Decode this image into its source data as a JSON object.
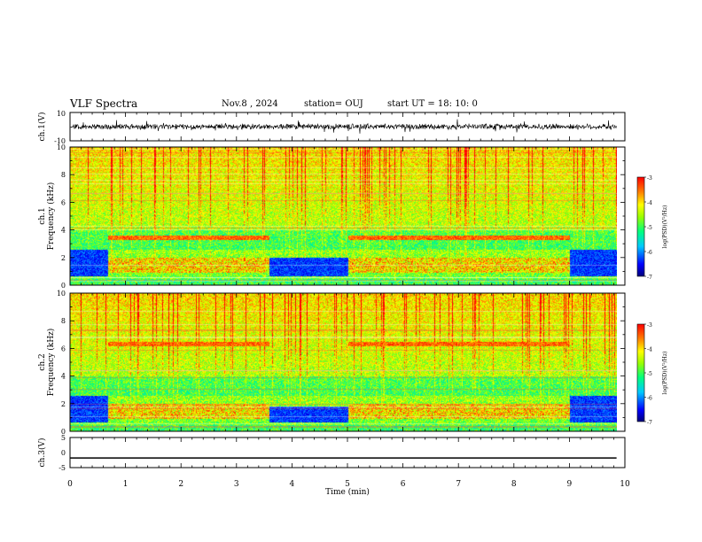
{
  "header": {
    "title": "VLF Spectra",
    "date": "Nov.8 , 2024",
    "station": "station= OUJ",
    "start": "start UT = 18: 10: 0"
  },
  "chart_data": [
    {
      "type": "line",
      "panel": "ch.1 waveform",
      "ylabel": "ch.1(V)",
      "ylim": [
        -10,
        10
      ],
      "yticks": [
        "10",
        "-10"
      ],
      "x_range_min": [
        0,
        9.85
      ],
      "baseline": 0,
      "description_values": "noisy trace around 0 V, amplitude roughly ±2 V"
    },
    {
      "type": "heatmap",
      "panel": "ch.1 spectrogram",
      "ylabel": "ch.1 Frequency (kHz)",
      "ylim": [
        0,
        10
      ],
      "yticks": [
        "0",
        "2",
        "4",
        "6",
        "8",
        "10"
      ],
      "colorbar": {
        "label": "log(PSD)(V²/Hz)",
        "range": [
          -7,
          -3
        ],
        "ticks": [
          "-3",
          "-4",
          "-5",
          "-6",
          "-7"
        ]
      },
      "segments": [
        {
          "x": [
            0,
            0.68
          ],
          "lowband_top": 2.6,
          "level": "low"
        },
        {
          "x": [
            0.68,
            3.58
          ],
          "band_khz": [
            3.3,
            3.6
          ],
          "level": "high"
        },
        {
          "x": [
            3.58,
            5.0
          ],
          "lowband_top": 2.0,
          "level": "low"
        },
        {
          "x": [
            5.0,
            9.0
          ],
          "band_khz": [
            3.3,
            3.6
          ],
          "level": "high"
        },
        {
          "x": [
            9.0,
            9.85
          ],
          "lowband_top": 2.6,
          "level": "low"
        }
      ]
    },
    {
      "type": "heatmap",
      "panel": "ch.2 spectrogram",
      "ylabel": "ch.2 Frequency (kHz)",
      "ylim": [
        0,
        10
      ],
      "yticks": [
        "0",
        "2",
        "4",
        "6",
        "8",
        "10"
      ],
      "colorbar": {
        "label": "log(PSD)(V²/Hz)",
        "range": [
          -7,
          -3
        ],
        "ticks": [
          "-3",
          "-4",
          "-5",
          "-6",
          "-7"
        ]
      },
      "segments": [
        {
          "x": [
            0,
            0.68
          ],
          "lowband_top": 2.6,
          "level": "low"
        },
        {
          "x": [
            0.68,
            3.58
          ],
          "band_khz": [
            6.2,
            6.5
          ],
          "level": "high"
        },
        {
          "x": [
            3.58,
            5.0
          ],
          "lowband_top": 1.8,
          "level": "low"
        },
        {
          "x": [
            5.0,
            9.0
          ],
          "band_khz": [
            6.2,
            6.5
          ],
          "level": "high"
        },
        {
          "x": [
            9.0,
            9.85
          ],
          "lowband_top": 2.6,
          "level": "low"
        }
      ]
    },
    {
      "type": "line",
      "panel": "ch.3 waveform",
      "ylabel": "ch.3(V)",
      "ylim": [
        -5,
        5
      ],
      "yticks": [
        "5",
        "0",
        "-5"
      ],
      "x": [
        0,
        9.85
      ],
      "y": [
        -1.8,
        -1.8
      ]
    }
  ],
  "xaxis": {
    "label": "Time (min)",
    "range": [
      0,
      10
    ],
    "ticks": [
      "0",
      "1",
      "2",
      "3",
      "4",
      "5",
      "6",
      "7",
      "8",
      "9",
      "10"
    ]
  }
}
